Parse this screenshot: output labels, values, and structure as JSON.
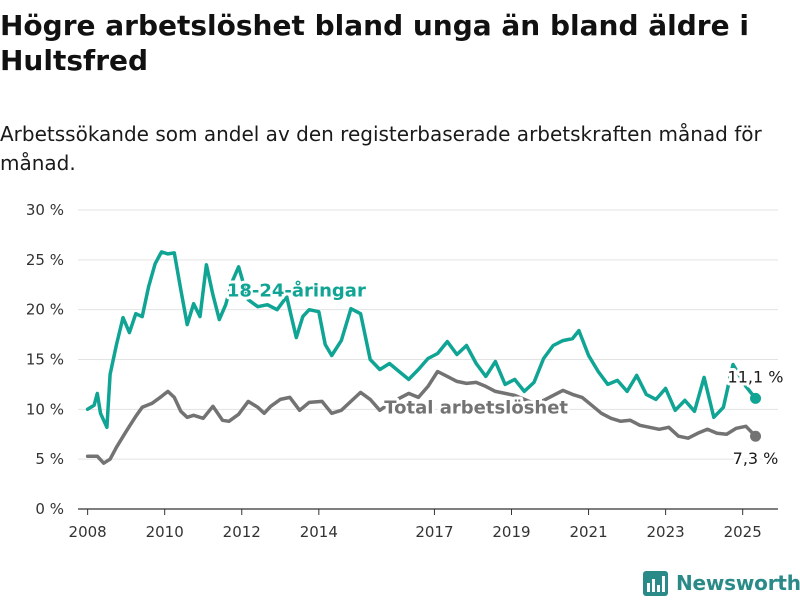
{
  "title": "Högre arbetslöshet bland unga än bland äldre i Hultsfred",
  "subtitle": "Arbetssökande som andel av den registerbaserade arbetskraften månad för månad.",
  "brand": {
    "name": "Newsworthy",
    "icon": "bar-chart-logo-icon",
    "color": "#2a8a88"
  },
  "chart_data": {
    "type": "line",
    "ylim": [
      0,
      30
    ],
    "yticks": [
      0,
      5,
      10,
      15,
      20,
      25,
      30
    ],
    "ytick_labels": [
      "0 %",
      "5 %",
      "10 %",
      "15 %",
      "20 %",
      "25 %",
      "30 %"
    ],
    "xlim": [
      "2007-10",
      "2025-12"
    ],
    "xticks": [
      "2008-01",
      "2010-01",
      "2012-01",
      "2014-01",
      "2017-01",
      "2019-01",
      "2021-01",
      "2023-01",
      "2025-01"
    ],
    "xtick_labels": [
      "2008",
      "2010",
      "2012",
      "2014",
      "2017",
      "2019",
      "2021",
      "2023",
      "2025"
    ],
    "grid": "horizontal",
    "series": [
      {
        "name": "Total arbetslöshet",
        "color": "#737373",
        "label_position": "2018-02",
        "end_label": "7,3 %",
        "points": [
          [
            "2008-01",
            5.3
          ],
          [
            "2008-04",
            5.3
          ],
          [
            "2008-06",
            4.6
          ],
          [
            "2008-08",
            5.0
          ],
          [
            "2008-10",
            6.2
          ],
          [
            "2009-01",
            7.8
          ],
          [
            "2009-04",
            9.3
          ],
          [
            "2009-06",
            10.2
          ],
          [
            "2009-09",
            10.6
          ],
          [
            "2009-12",
            11.3
          ],
          [
            "2010-02",
            11.8
          ],
          [
            "2010-04",
            11.2
          ],
          [
            "2010-06",
            9.8
          ],
          [
            "2010-08",
            9.2
          ],
          [
            "2010-10",
            9.4
          ],
          [
            "2011-01",
            9.1
          ],
          [
            "2011-04",
            10.3
          ],
          [
            "2011-07",
            8.9
          ],
          [
            "2011-09",
            8.8
          ],
          [
            "2011-12",
            9.5
          ],
          [
            "2012-03",
            10.8
          ],
          [
            "2012-06",
            10.2
          ],
          [
            "2012-08",
            9.6
          ],
          [
            "2012-10",
            10.3
          ],
          [
            "2013-01",
            11.0
          ],
          [
            "2013-04",
            11.2
          ],
          [
            "2013-07",
            9.9
          ],
          [
            "2013-10",
            10.7
          ],
          [
            "2014-02",
            10.8
          ],
          [
            "2014-05",
            9.6
          ],
          [
            "2014-08",
            9.9
          ],
          [
            "2014-11",
            10.8
          ],
          [
            "2015-02",
            11.7
          ],
          [
            "2015-05",
            11.0
          ],
          [
            "2015-08",
            9.9
          ],
          [
            "2015-11",
            10.6
          ],
          [
            "2016-02",
            11.1
          ],
          [
            "2016-05",
            11.6
          ],
          [
            "2016-08",
            11.2
          ],
          [
            "2016-11",
            12.3
          ],
          [
            "2017-02",
            13.8
          ],
          [
            "2017-05",
            13.3
          ],
          [
            "2017-08",
            12.8
          ],
          [
            "2017-11",
            12.6
          ],
          [
            "2018-02",
            12.7
          ],
          [
            "2018-05",
            12.3
          ],
          [
            "2018-08",
            11.8
          ],
          [
            "2018-11",
            11.6
          ],
          [
            "2019-02",
            11.4
          ],
          [
            "2019-05",
            11.0
          ],
          [
            "2019-08",
            10.6
          ],
          [
            "2019-11",
            10.9
          ],
          [
            "2020-02",
            11.4
          ],
          [
            "2020-05",
            11.9
          ],
          [
            "2020-08",
            11.5
          ],
          [
            "2020-11",
            11.2
          ],
          [
            "2021-02",
            10.4
          ],
          [
            "2021-05",
            9.6
          ],
          [
            "2021-08",
            9.1
          ],
          [
            "2021-11",
            8.8
          ],
          [
            "2022-02",
            8.9
          ],
          [
            "2022-05",
            8.4
          ],
          [
            "2022-08",
            8.2
          ],
          [
            "2022-11",
            8.0
          ],
          [
            "2023-02",
            8.2
          ],
          [
            "2023-05",
            7.3
          ],
          [
            "2023-08",
            7.1
          ],
          [
            "2023-11",
            7.6
          ],
          [
            "2024-02",
            8.0
          ],
          [
            "2024-05",
            7.6
          ],
          [
            "2024-08",
            7.5
          ],
          [
            "2024-11",
            8.1
          ],
          [
            "2025-02",
            8.3
          ],
          [
            "2025-05",
            7.3
          ]
        ]
      },
      {
        "name": "18-24-åringar",
        "color": "#10a494",
        "label_position": "2013-06",
        "end_label": "11,1 %",
        "points": [
          [
            "2008-01",
            10.0
          ],
          [
            "2008-03",
            10.4
          ],
          [
            "2008-04",
            11.6
          ],
          [
            "2008-05",
            9.6
          ],
          [
            "2008-07",
            8.2
          ],
          [
            "2008-08",
            13.5
          ],
          [
            "2008-10",
            16.5
          ],
          [
            "2008-12",
            19.2
          ],
          [
            "2009-02",
            17.7
          ],
          [
            "2009-04",
            19.6
          ],
          [
            "2009-06",
            19.3
          ],
          [
            "2009-08",
            22.3
          ],
          [
            "2009-10",
            24.6
          ],
          [
            "2009-12",
            25.8
          ],
          [
            "2010-02",
            25.6
          ],
          [
            "2010-04",
            25.7
          ],
          [
            "2010-06",
            22.0
          ],
          [
            "2010-08",
            18.5
          ],
          [
            "2010-10",
            20.6
          ],
          [
            "2010-12",
            19.3
          ],
          [
            "2011-02",
            24.5
          ],
          [
            "2011-04",
            21.5
          ],
          [
            "2011-06",
            19.0
          ],
          [
            "2011-08",
            20.5
          ],
          [
            "2011-10",
            22.8
          ],
          [
            "2011-12",
            24.3
          ],
          [
            "2012-03",
            21.0
          ],
          [
            "2012-06",
            20.3
          ],
          [
            "2012-09",
            20.5
          ],
          [
            "2012-12",
            20.0
          ],
          [
            "2013-03",
            21.3
          ],
          [
            "2013-06",
            17.2
          ],
          [
            "2013-08",
            19.3
          ],
          [
            "2013-10",
            20.0
          ],
          [
            "2014-01",
            19.8
          ],
          [
            "2014-03",
            16.5
          ],
          [
            "2014-05",
            15.4
          ],
          [
            "2014-08",
            16.9
          ],
          [
            "2014-11",
            20.1
          ],
          [
            "2015-02",
            19.6
          ],
          [
            "2015-05",
            15.0
          ],
          [
            "2015-08",
            14.0
          ],
          [
            "2015-11",
            14.6
          ],
          [
            "2016-02",
            13.8
          ],
          [
            "2016-05",
            13.0
          ],
          [
            "2016-08",
            14.0
          ],
          [
            "2016-11",
            15.1
          ],
          [
            "2017-02",
            15.6
          ],
          [
            "2017-05",
            16.8
          ],
          [
            "2017-08",
            15.5
          ],
          [
            "2017-11",
            16.4
          ],
          [
            "2018-02",
            14.6
          ],
          [
            "2018-05",
            13.3
          ],
          [
            "2018-08",
            14.8
          ],
          [
            "2018-11",
            12.5
          ],
          [
            "2019-02",
            13.0
          ],
          [
            "2019-05",
            11.8
          ],
          [
            "2019-08",
            12.7
          ],
          [
            "2019-11",
            15.1
          ],
          [
            "2020-02",
            16.4
          ],
          [
            "2020-05",
            16.9
          ],
          [
            "2020-08",
            17.1
          ],
          [
            "2020-10",
            17.9
          ],
          [
            "2021-01",
            15.4
          ],
          [
            "2021-04",
            13.8
          ],
          [
            "2021-07",
            12.5
          ],
          [
            "2021-10",
            12.9
          ],
          [
            "2022-01",
            11.8
          ],
          [
            "2022-04",
            13.4
          ],
          [
            "2022-07",
            11.5
          ],
          [
            "2022-10",
            11.0
          ],
          [
            "2023-01",
            12.1
          ],
          [
            "2023-04",
            9.9
          ],
          [
            "2023-07",
            10.9
          ],
          [
            "2023-10",
            9.8
          ],
          [
            "2024-01",
            13.2
          ],
          [
            "2024-04",
            9.2
          ],
          [
            "2024-07",
            10.2
          ],
          [
            "2024-10",
            14.5
          ],
          [
            "2025-02",
            12.3
          ],
          [
            "2025-05",
            11.1
          ]
        ]
      }
    ]
  }
}
